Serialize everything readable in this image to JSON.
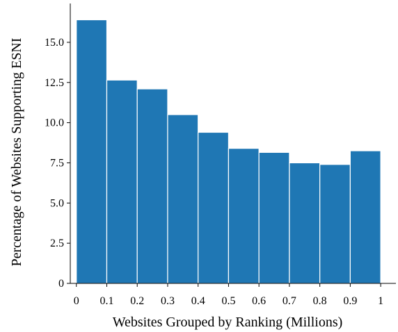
{
  "chart_data": {
    "type": "bar",
    "title": "",
    "xlabel": "Websites Grouped by Ranking (Millions)",
    "ylabel": "Percentage of Websites Supporting ESNI",
    "bin_edges": [
      0,
      0.1,
      0.2,
      0.3,
      0.4,
      0.5,
      0.6,
      0.7,
      0.8,
      0.9,
      1.0
    ],
    "values": [
      16.4,
      12.65,
      12.1,
      10.5,
      9.4,
      8.4,
      8.15,
      7.5,
      7.4,
      8.25
    ],
    "xlim": [
      -0.02,
      1.05
    ],
    "ylim": [
      0,
      17.2
    ],
    "xticks": [
      0,
      0.1,
      0.2,
      0.3,
      0.4,
      0.5,
      0.6,
      0.7,
      0.8,
      0.9,
      1.0
    ],
    "xtick_labels": [
      "0",
      "0.1",
      "0.2",
      "0.3",
      "0.4",
      "0.5",
      "0.6",
      "0.7",
      "0.8",
      "0.9",
      "1"
    ],
    "yticks": [
      0,
      2.5,
      5.0,
      7.5,
      10.0,
      12.5,
      15.0
    ],
    "ytick_labels": [
      "0",
      "2.5",
      "5.0",
      "7.5",
      "10.0",
      "12.5",
      "15.0"
    ],
    "grid": false,
    "legend": "none",
    "bar_color": "#1f77b4",
    "bar_edge_color": "#ffffff"
  }
}
